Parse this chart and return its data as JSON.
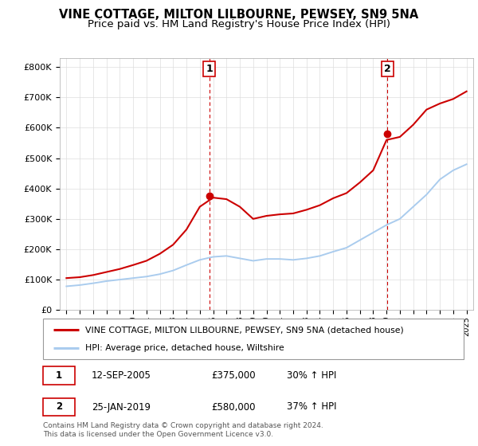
{
  "title": "VINE COTTAGE, MILTON LILBOURNE, PEWSEY, SN9 5NA",
  "subtitle": "Price paid vs. HM Land Registry's House Price Index (HPI)",
  "years": [
    1995,
    1996,
    1997,
    1998,
    1999,
    2000,
    2001,
    2002,
    2003,
    2004,
    2005,
    2006,
    2007,
    2008,
    2009,
    2010,
    2011,
    2012,
    2013,
    2014,
    2015,
    2016,
    2017,
    2018,
    2019,
    2020,
    2021,
    2022,
    2023,
    2024,
    2025
  ],
  "red_line": [
    105000,
    108000,
    115000,
    125000,
    135000,
    148000,
    162000,
    185000,
    215000,
    265000,
    340000,
    370000,
    365000,
    340000,
    300000,
    310000,
    315000,
    318000,
    330000,
    345000,
    368000,
    385000,
    420000,
    460000,
    560000,
    570000,
    610000,
    660000,
    680000,
    695000,
    720000
  ],
  "blue_line": [
    78000,
    82000,
    88000,
    95000,
    100000,
    105000,
    110000,
    118000,
    130000,
    148000,
    165000,
    175000,
    178000,
    170000,
    162000,
    168000,
    168000,
    165000,
    170000,
    178000,
    192000,
    205000,
    230000,
    255000,
    280000,
    300000,
    340000,
    380000,
    430000,
    460000,
    480000
  ],
  "marker1_x": 2005.7,
  "marker1_y": 375000,
  "marker2_x": 2019.07,
  "marker2_y": 580000,
  "vline1_x": 2005.7,
  "vline2_x": 2019.07,
  "ylim": [
    0,
    830000
  ],
  "yticks": [
    0,
    100000,
    200000,
    300000,
    400000,
    500000,
    600000,
    700000,
    800000
  ],
  "ytick_labels": [
    "£0",
    "£100K",
    "£200K",
    "£300K",
    "£400K",
    "£500K",
    "£600K",
    "£700K",
    "£800K"
  ],
  "xtick_years": [
    1995,
    1996,
    1997,
    1998,
    1999,
    2000,
    2001,
    2002,
    2003,
    2004,
    2005,
    2006,
    2007,
    2008,
    2009,
    2010,
    2011,
    2012,
    2013,
    2014,
    2015,
    2016,
    2017,
    2018,
    2019,
    2020,
    2021,
    2022,
    2023,
    2024,
    2025
  ],
  "red_color": "#cc0000",
  "blue_color": "#aaccee",
  "vline_color": "#cc0000",
  "background_color": "#ffffff",
  "grid_color": "#dddddd",
  "legend_label_red": "VINE COTTAGE, MILTON LILBOURNE, PEWSEY, SN9 5NA (detached house)",
  "legend_label_blue": "HPI: Average price, detached house, Wiltshire",
  "annotation1_label": "1",
  "annotation2_label": "2",
  "table_row1": [
    "1",
    "12-SEP-2005",
    "£375,000",
    "30% ↑ HPI"
  ],
  "table_row2": [
    "2",
    "25-JAN-2019",
    "£580,000",
    "37% ↑ HPI"
  ],
  "footnote": "Contains HM Land Registry data © Crown copyright and database right 2024.\nThis data is licensed under the Open Government Licence v3.0.",
  "title_fontsize": 10.5,
  "subtitle_fontsize": 9.5
}
